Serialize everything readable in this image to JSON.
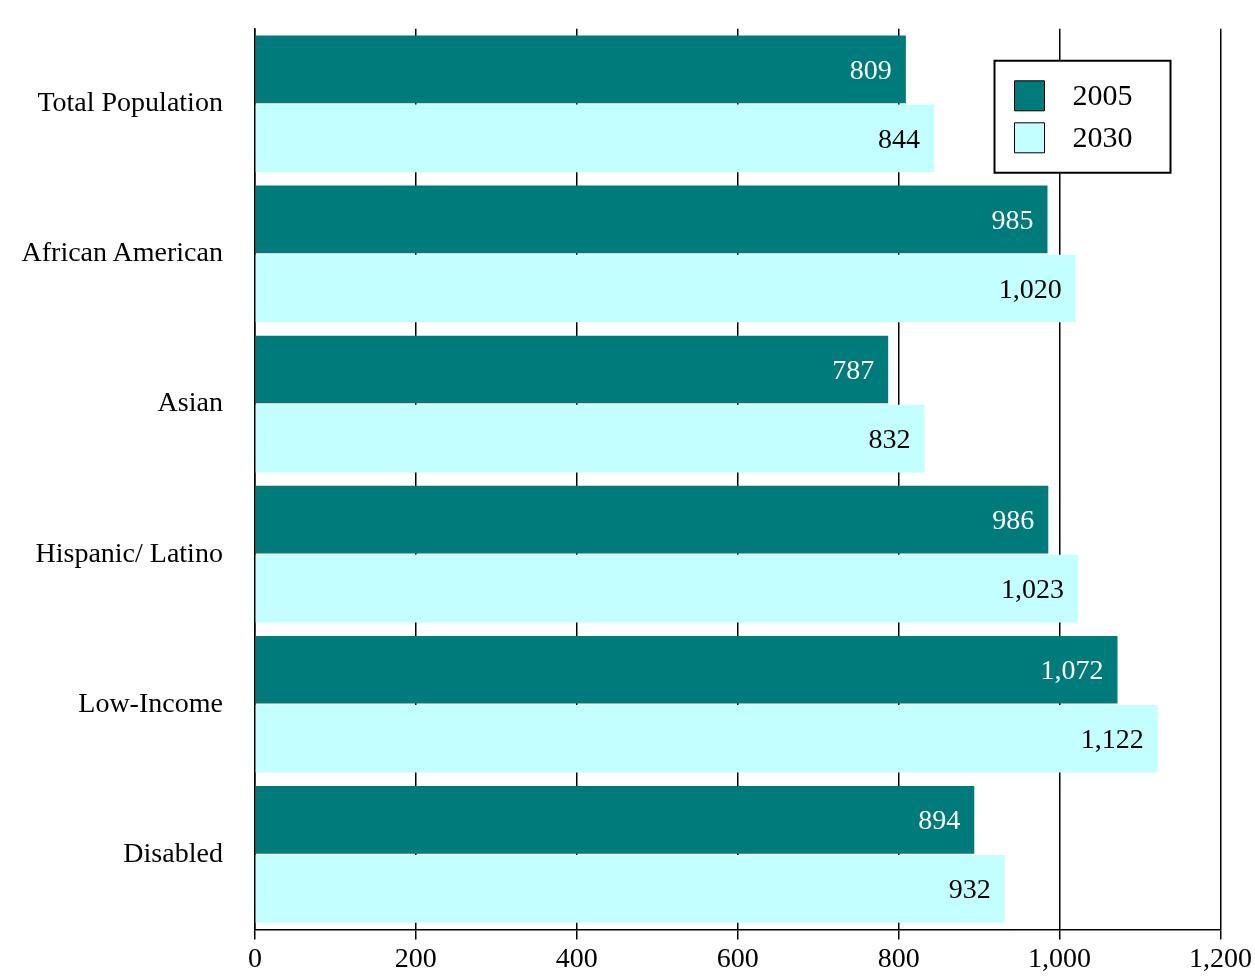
{
  "chart_data": {
    "type": "bar",
    "orientation": "horizontal",
    "categories": [
      "Total Population",
      "African American",
      "Asian",
      "Hispanic/ Latino",
      "Low-Income",
      "Disabled"
    ],
    "series": [
      {
        "name": "2005",
        "color": "#007b7b",
        "values": [
          809,
          985,
          787,
          986,
          1072,
          894
        ],
        "value_labels": [
          "809",
          "985",
          "787",
          "986",
          "1,072",
          "894"
        ]
      },
      {
        "name": "2030",
        "color": "#c4ffff",
        "values": [
          844,
          1020,
          832,
          1023,
          1122,
          932
        ],
        "value_labels": [
          "844",
          "1,020",
          "832",
          "1,023",
          "1,122",
          "932"
        ]
      }
    ],
    "xlim": [
      0,
      1200
    ],
    "xticks": [
      0,
      200,
      400,
      600,
      800,
      {
        "value": 1000,
        "label": "1,000"
      },
      {
        "value": 1200,
        "label": "1,200"
      }
    ],
    "grid": "x",
    "legend": "top right"
  }
}
